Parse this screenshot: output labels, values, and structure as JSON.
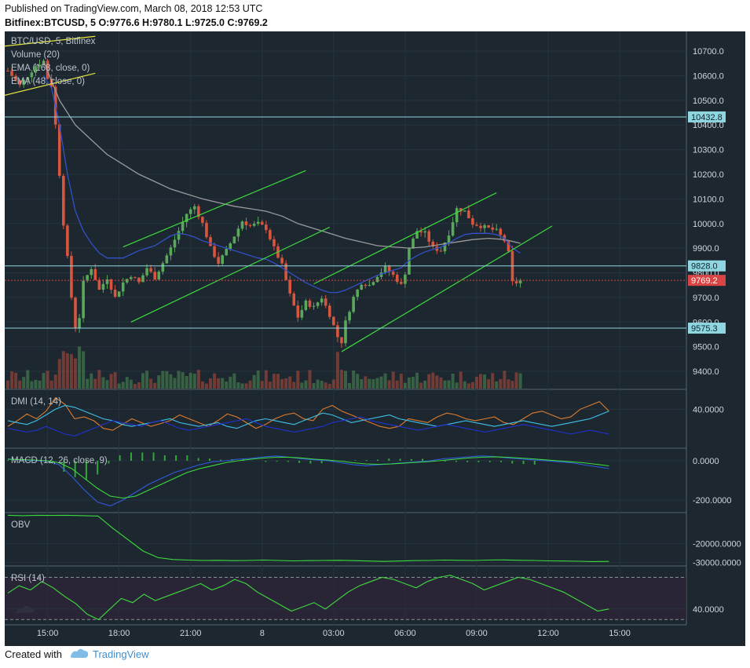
{
  "header": {
    "published": "Published on TradingView.com, March 08, 2018 12:53 UTC",
    "symbol_line": "Bitfinex:BTCUSD, 5  O:9776.6 H:9780.1 L:9725.0 C:9769.2"
  },
  "footer": {
    "created_with": "Created with",
    "brand": "TradingView"
  },
  "colors": {
    "background": "#1c2730",
    "candle_up": "#5aa85a",
    "candle_down": "#d9553e",
    "ema_168": "#9a9a9a",
    "ema_48": "#3450c8",
    "trendline_green": "#3ddc3d",
    "trendline_yellow": "#e8e83a",
    "horizontal_level": "#8fd6e0",
    "last_price": "#d94545"
  },
  "chart_data": [
    {
      "type": "candlestick",
      "legend": [
        "BTC/USD, 5, Bitfinex",
        "Volume (20)",
        "EMA (168, close, 0)",
        "EMA (48, close, 0)"
      ],
      "x_ticks": [
        "15:00",
        "18:00",
        "21:00",
        "8",
        "03:00",
        "06:00",
        "09:00",
        "12:00",
        "15:00"
      ],
      "y_ticks": [
        9400,
        9500,
        9600,
        9700,
        9800,
        9900,
        10000,
        10100,
        10200,
        10300,
        10400,
        10500,
        10600,
        10700
      ],
      "ylim": [
        9330,
        10780
      ],
      "price_labels": [
        {
          "text": "10432.8",
          "value": 10432.8,
          "kind": "level"
        },
        {
          "text": "9828.0",
          "value": 9828.0,
          "kind": "level"
        },
        {
          "text": "9769.2",
          "value": 9769.2,
          "kind": "last"
        },
        {
          "text": "9575.3",
          "value": 9575.3,
          "kind": "level"
        }
      ],
      "ohlc_last": {
        "open": 9776.6,
        "high": 9780.1,
        "low": 9725.0,
        "close": 9769.2
      },
      "price_path": [
        [
          0,
          10620
        ],
        [
          3,
          10560
        ],
        [
          5,
          10600
        ],
        [
          7,
          10640
        ],
        [
          9,
          10660
        ],
        [
          10,
          10590
        ],
        [
          11,
          10560
        ],
        [
          12,
          10400
        ],
        [
          13,
          10200
        ],
        [
          14,
          10000
        ],
        [
          15,
          9860
        ],
        [
          16,
          9700
        ],
        [
          17,
          9580
        ],
        [
          18,
          9620
        ],
        [
          19,
          9760
        ],
        [
          21,
          9820
        ],
        [
          23,
          9730
        ],
        [
          25,
          9780
        ],
        [
          27,
          9700
        ],
        [
          29,
          9760
        ],
        [
          31,
          9790
        ],
        [
          33,
          9760
        ],
        [
          35,
          9820
        ],
        [
          37,
          9780
        ],
        [
          39,
          9840
        ],
        [
          41,
          9900
        ],
        [
          43,
          9970
        ],
        [
          45,
          10040
        ],
        [
          47,
          10070
        ],
        [
          49,
          10000
        ],
        [
          51,
          9900
        ],
        [
          53,
          9840
        ],
        [
          55,
          9890
        ],
        [
          57,
          9950
        ],
        [
          59,
          10010
        ],
        [
          61,
          9990
        ],
        [
          63,
          10000
        ],
        [
          65,
          9980
        ],
        [
          67,
          9900
        ],
        [
          69,
          9830
        ],
        [
          71,
          9710
        ],
        [
          73,
          9620
        ],
        [
          75,
          9680
        ],
        [
          77,
          9660
        ],
        [
          79,
          9700
        ],
        [
          81,
          9630
        ],
        [
          83,
          9540
        ],
        [
          84,
          9520
        ],
        [
          85,
          9600
        ],
        [
          87,
          9700
        ],
        [
          89,
          9760
        ],
        [
          91,
          9750
        ],
        [
          93,
          9790
        ],
        [
          95,
          9820
        ],
        [
          97,
          9790
        ],
        [
          99,
          9750
        ],
        [
          100,
          9800
        ],
        [
          101,
          9900
        ],
        [
          103,
          9970
        ],
        [
          105,
          9960
        ],
        [
          107,
          9900
        ],
        [
          109,
          9890
        ],
        [
          111,
          9960
        ],
        [
          113,
          10060
        ],
        [
          115,
          10050
        ],
        [
          117,
          10000
        ],
        [
          119,
          9990
        ],
        [
          121,
          9980
        ],
        [
          123,
          9970
        ],
        [
          125,
          9930
        ],
        [
          126,
          9880
        ],
        [
          127,
          9760
        ],
        [
          128,
          9760
        ],
        [
          129,
          9769
        ]
      ],
      "ema_168_path": [
        [
          9,
          10660
        ],
        [
          13,
          10500
        ],
        [
          17,
          10400
        ],
        [
          21,
          10340
        ],
        [
          25,
          10280
        ],
        [
          29,
          10240
        ],
        [
          33,
          10200
        ],
        [
          37,
          10170
        ],
        [
          41,
          10140
        ],
        [
          45,
          10120
        ],
        [
          49,
          10100
        ],
        [
          53,
          10085
        ],
        [
          57,
          10070
        ],
        [
          61,
          10060
        ],
        [
          65,
          10050
        ],
        [
          69,
          10030
        ],
        [
          73,
          10000
        ],
        [
          77,
          9980
        ],
        [
          81,
          9960
        ],
        [
          85,
          9940
        ],
        [
          89,
          9925
        ],
        [
          93,
          9910
        ],
        [
          97,
          9905
        ],
        [
          101,
          9900
        ],
        [
          105,
          9905
        ],
        [
          109,
          9915
        ],
        [
          113,
          9925
        ],
        [
          117,
          9935
        ],
        [
          121,
          9940
        ],
        [
          125,
          9935
        ],
        [
          129,
          9920
        ]
      ],
      "ema_48_path": [
        [
          9,
          10600
        ],
        [
          11,
          10550
        ],
        [
          13,
          10400
        ],
        [
          15,
          10200
        ],
        [
          17,
          10050
        ],
        [
          19,
          9970
        ],
        [
          21,
          9920
        ],
        [
          23,
          9880
        ],
        [
          25,
          9860
        ],
        [
          27,
          9860
        ],
        [
          29,
          9860
        ],
        [
          31,
          9875
        ],
        [
          33,
          9890
        ],
        [
          35,
          9900
        ],
        [
          37,
          9910
        ],
        [
          39,
          9930
        ],
        [
          41,
          9950
        ],
        [
          43,
          9960
        ],
        [
          45,
          9955
        ],
        [
          47,
          9945
        ],
        [
          49,
          9930
        ],
        [
          51,
          9920
        ],
        [
          53,
          9910
        ],
        [
          55,
          9900
        ],
        [
          57,
          9890
        ],
        [
          59,
          9880
        ],
        [
          61,
          9870
        ],
        [
          63,
          9860
        ],
        [
          65,
          9855
        ],
        [
          67,
          9840
        ],
        [
          69,
          9820
        ],
        [
          71,
          9800
        ],
        [
          73,
          9780
        ],
        [
          75,
          9760
        ],
        [
          77,
          9745
        ],
        [
          79,
          9730
        ],
        [
          81,
          9720
        ],
        [
          83,
          9720
        ],
        [
          85,
          9730
        ],
        [
          87,
          9745
        ],
        [
          89,
          9760
        ],
        [
          91,
          9775
        ],
        [
          93,
          9790
        ],
        [
          95,
          9800
        ],
        [
          97,
          9810
        ],
        [
          99,
          9820
        ],
        [
          101,
          9850
        ],
        [
          103,
          9870
        ],
        [
          105,
          9885
        ],
        [
          107,
          9895
        ],
        [
          109,
          9905
        ],
        [
          111,
          9920
        ],
        [
          113,
          9940
        ],
        [
          115,
          9955
        ],
        [
          117,
          9960
        ],
        [
          119,
          9960
        ],
        [
          121,
          9960
        ],
        [
          123,
          9955
        ],
        [
          125,
          9940
        ],
        [
          127,
          9900
        ],
        [
          129,
          9880
        ]
      ]
    },
    {
      "type": "line",
      "title": "DMI (14, 14)",
      "y_ticks": [
        40.0
      ],
      "tick_labels": [
        "40.0000"
      ],
      "ylim": [
        0,
        60
      ],
      "series": [
        {
          "color": "#e07b2c",
          "values": [
            22,
            28,
            35,
            30,
            38,
            52,
            45,
            30,
            32,
            28,
            20,
            18,
            24,
            30,
            26,
            22,
            25,
            28,
            34,
            30,
            26,
            22,
            28,
            35,
            32,
            26,
            20,
            24,
            30,
            34,
            36,
            30,
            28,
            40,
            44,
            38,
            34,
            30,
            26,
            22,
            20,
            22,
            30,
            28,
            26,
            32,
            36,
            34,
            30,
            28,
            30,
            32,
            26,
            24,
            30,
            36,
            38,
            34,
            30,
            32,
            40,
            44,
            48,
            38
          ]
        },
        {
          "color": "#3ec0e8",
          "values": [
            28,
            26,
            24,
            28,
            34,
            40,
            44,
            42,
            38,
            34,
            30,
            28,
            24,
            22,
            24,
            26,
            28,
            30,
            26,
            24,
            22,
            24,
            26,
            22,
            20,
            24,
            28,
            30,
            28,
            26,
            24,
            28,
            32,
            36,
            34,
            30,
            26,
            28,
            30,
            32,
            34,
            30,
            28,
            26,
            24,
            22,
            24,
            26,
            28,
            26,
            24,
            22,
            24,
            26,
            28,
            26,
            24,
            22,
            24,
            26,
            28,
            30,
            34,
            38
          ]
        },
        {
          "color": "#2232d0",
          "values": [
            20,
            18,
            16,
            18,
            22,
            18,
            14,
            12,
            16,
            20,
            24,
            28,
            26,
            24,
            22,
            26,
            28,
            24,
            20,
            18,
            20,
            22,
            24,
            26,
            28,
            30,
            26,
            22,
            20,
            18,
            16,
            18,
            20,
            22,
            26,
            28,
            30,
            32,
            28,
            26,
            24,
            22,
            20,
            18,
            20,
            22,
            24,
            22,
            20,
            18,
            16,
            18,
            20,
            22,
            24,
            22,
            20,
            18,
            16,
            14,
            16,
            18,
            16,
            14
          ]
        }
      ]
    },
    {
      "type": "line",
      "title": "MACD (12, 26, close, 9)",
      "y_ticks": [
        0,
        -200
      ],
      "tick_labels": [
        "0.0000",
        "-200.0000"
      ],
      "ylim": [
        -260,
        60
      ],
      "series": [
        {
          "color": "#2f5be0",
          "values": [
            10,
            5,
            0,
            -2,
            -20,
            -80,
            -150,
            -210,
            -230,
            -200,
            -160,
            -120,
            -90,
            -60,
            -40,
            -20,
            -5,
            0,
            8,
            12,
            20,
            25,
            18,
            10,
            5,
            0,
            -10,
            -20,
            -25,
            -20,
            -15,
            -10,
            -5,
            0,
            10,
            15,
            20,
            25,
            22,
            15,
            10,
            5,
            0,
            -5,
            -10,
            -20,
            -30,
            -40
          ]
        },
        {
          "color": "#3ddc3d",
          "values": [
            8,
            6,
            4,
            0,
            -10,
            -40,
            -90,
            -140,
            -180,
            -190,
            -180,
            -150,
            -120,
            -90,
            -60,
            -40,
            -25,
            -10,
            0,
            8,
            14,
            18,
            18,
            14,
            8,
            4,
            -2,
            -10,
            -16,
            -18,
            -16,
            -12,
            -8,
            -4,
            2,
            8,
            14,
            18,
            20,
            18,
            14,
            10,
            5,
            0,
            -5,
            -10,
            -18,
            -26
          ]
        }
      ],
      "histogram_color": "#3ddc3d"
    },
    {
      "type": "line",
      "title": "OBV",
      "y_ticks": [
        -20000,
        -30000
      ],
      "tick_labels": [
        "-20000.0000",
        "-30000.0000"
      ],
      "ylim": [
        -31500,
        -4000
      ],
      "series": [
        {
          "color": "#3ddc3d",
          "values": [
            -5000,
            -5200,
            -5000,
            -5100,
            -5000,
            -5200,
            -5400,
            -12000,
            -18000,
            -24000,
            -27500,
            -28500,
            -28800,
            -29000,
            -28900,
            -29100,
            -29000,
            -28800,
            -29000,
            -29200,
            -29100,
            -29000,
            -28900,
            -29100,
            -29300,
            -29500,
            -29300,
            -29100,
            -29000,
            -28800,
            -28900,
            -29000,
            -28800,
            -28700,
            -28900,
            -29000,
            -29200,
            -29300,
            -29400,
            -29600,
            -29500
          ]
        }
      ]
    },
    {
      "type": "line",
      "title": "RSI (14)",
      "y_ticks": [
        40
      ],
      "tick_labels": [
        "40.0000"
      ],
      "ylim": [
        25,
        80
      ],
      "series": [
        {
          "color": "#3ddc3d",
          "values": [
            55,
            62,
            58,
            66,
            60,
            52,
            45,
            35,
            30,
            40,
            50,
            46,
            54,
            48,
            52,
            56,
            60,
            64,
            58,
            62,
            68,
            64,
            56,
            50,
            44,
            38,
            42,
            46,
            40,
            48,
            56,
            62,
            66,
            70,
            68,
            64,
            60,
            66,
            70,
            72,
            68,
            64,
            58,
            62,
            66,
            70,
            68,
            64,
            60,
            56,
            50,
            44,
            38,
            40
          ]
        }
      ]
    }
  ]
}
